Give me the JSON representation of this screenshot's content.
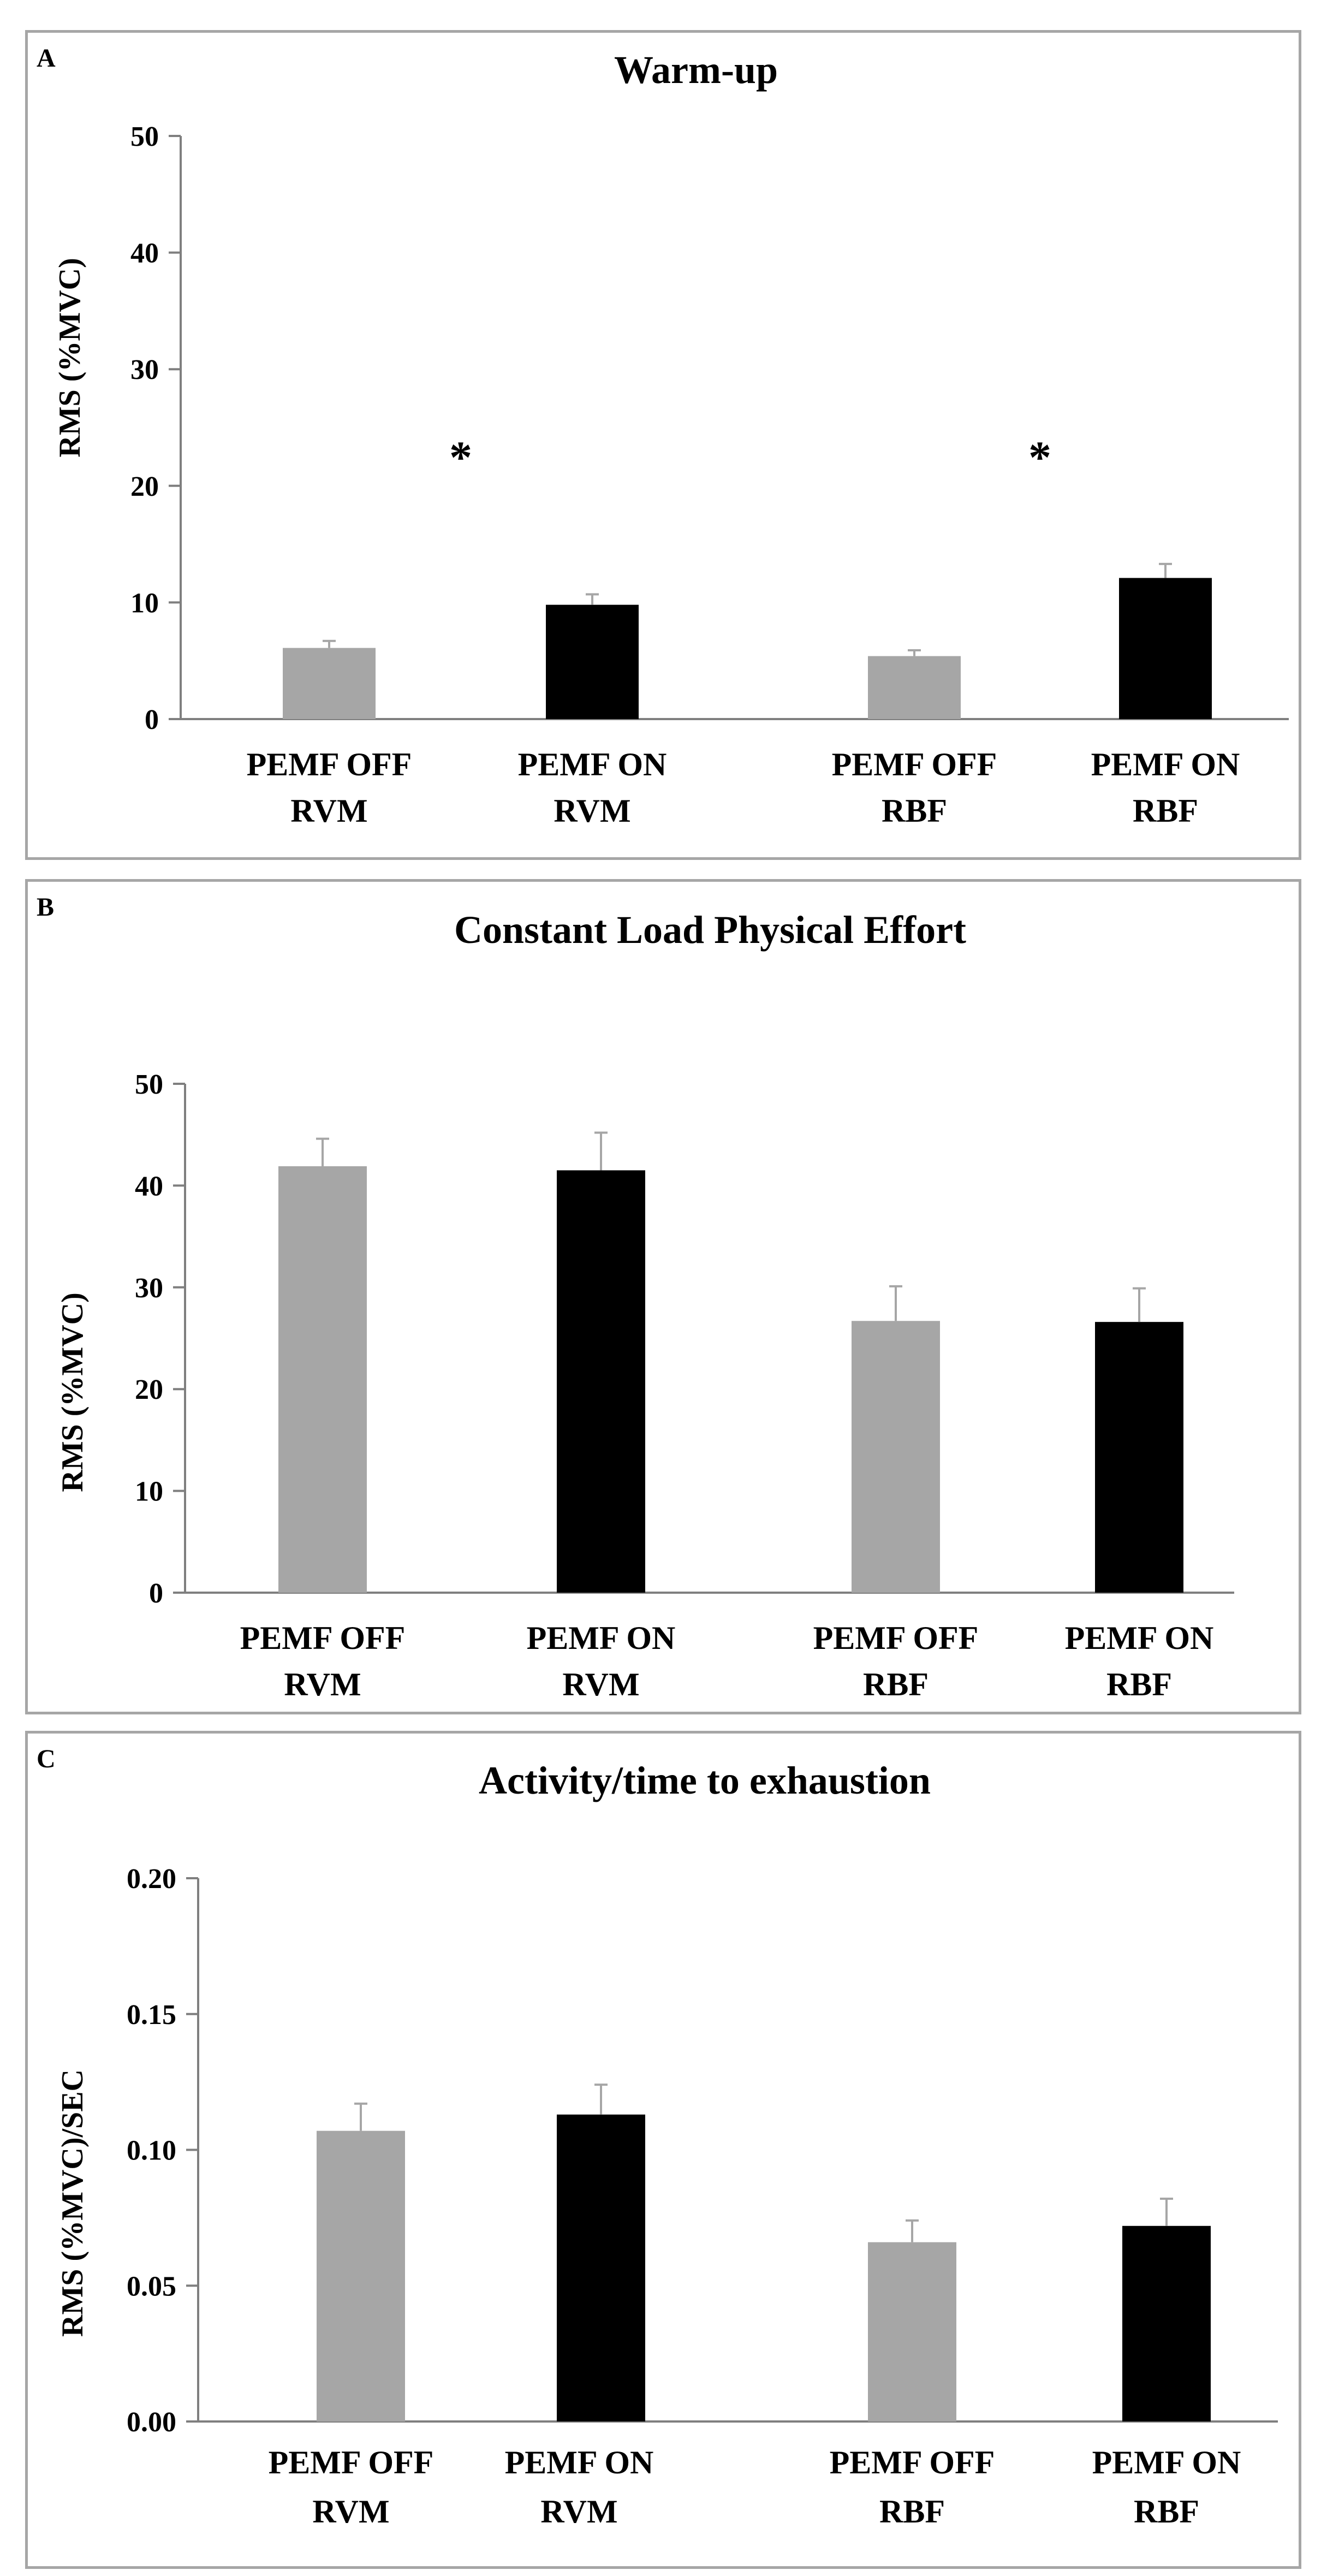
{
  "chart_data": [
    {
      "type": "bar",
      "panel": "A",
      "title": "Warm-up",
      "ylabel": "RMS (%MVC)",
      "xlabel": "",
      "ylim": [
        0,
        50
      ],
      "yticks": [
        "0",
        "10",
        "20",
        "30",
        "40",
        "50"
      ],
      "grid": false,
      "legend": "none",
      "categories": [
        {
          "line1": "PEMF OFF",
          "line2": "RVM"
        },
        {
          "line1": "PEMF ON",
          "line2": "RVM"
        },
        {
          "line1": "PEMF OFF",
          "line2": "RBF"
        },
        {
          "line1": "PEMF ON",
          "line2": "RBF"
        }
      ],
      "values": [
        6.1,
        9.8,
        5.4,
        12.1
      ],
      "errors": [
        0.6,
        0.9,
        0.5,
        1.2
      ],
      "bar_colors": [
        "#a6a6a6",
        "#000000",
        "#a6a6a6",
        "#000000"
      ],
      "annotations": [
        {
          "text": "*",
          "between": [
            0,
            1
          ],
          "y": 23
        },
        {
          "text": "*",
          "between": [
            2,
            3
          ],
          "y": 23
        }
      ]
    },
    {
      "type": "bar",
      "panel": "B",
      "title": "Constant Load Physical Effort",
      "ylabel": "RMS (%MVC)",
      "xlabel": "",
      "ylim": [
        0,
        50
      ],
      "yticks": [
        "0",
        "10",
        "20",
        "30",
        "40",
        "50"
      ],
      "grid": false,
      "legend": "none",
      "categories": [
        {
          "line1": "PEMF OFF",
          "line2": "RVM"
        },
        {
          "line1": "PEMF ON",
          "line2": "RVM"
        },
        {
          "line1": "PEMF OFF",
          "line2": "RBF"
        },
        {
          "line1": "PEMF ON",
          "line2": "RBF"
        }
      ],
      "values": [
        41.9,
        41.5,
        26.7,
        26.6
      ],
      "errors": [
        2.7,
        3.7,
        3.4,
        3.3
      ],
      "bar_colors": [
        "#a6a6a6",
        "#000000",
        "#a6a6a6",
        "#000000"
      ],
      "annotations": []
    },
    {
      "type": "bar",
      "panel": "C",
      "title": "Activity/time to exhaustion",
      "ylabel": "RMS (%MVC)/SEC",
      "xlabel": "",
      "ylim": [
        0,
        0.2
      ],
      "yticks": [
        "0.00",
        "0.05",
        "0.10",
        "0.15",
        "0.20"
      ],
      "grid": false,
      "legend": "none",
      "categories": [
        {
          "line1": "PEMF OFF",
          "line2": "RVM"
        },
        {
          "line1": "PEMF ON",
          "line2": "RVM"
        },
        {
          "line1": "PEMF OFF",
          "line2": "RBF"
        },
        {
          "line1": "PEMF ON",
          "line2": "RBF"
        }
      ],
      "values": [
        0.107,
        0.113,
        0.066,
        0.072
      ],
      "errors": [
        0.01,
        0.011,
        0.008,
        0.01
      ],
      "bar_colors": [
        "#a6a6a6",
        "#000000",
        "#a6a6a6",
        "#000000"
      ],
      "annotations": []
    }
  ]
}
